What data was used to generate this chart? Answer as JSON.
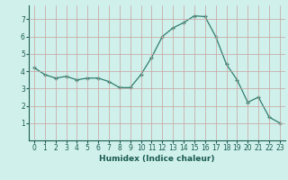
{
  "x": [
    0,
    1,
    2,
    3,
    4,
    5,
    6,
    7,
    8,
    9,
    10,
    11,
    12,
    13,
    14,
    15,
    16,
    17,
    18,
    19,
    20,
    21,
    22,
    23
  ],
  "y": [
    4.2,
    3.8,
    3.6,
    3.7,
    3.5,
    3.6,
    3.6,
    3.4,
    3.05,
    3.05,
    3.8,
    4.8,
    6.0,
    6.5,
    6.8,
    7.2,
    7.15,
    6.0,
    4.4,
    3.5,
    2.2,
    2.5,
    1.35,
    1.0
  ],
  "line_color": "#2e7d6e",
  "marker": "+",
  "marker_size": 3.5,
  "bg_color": "#d0f0eb",
  "grid_color_major": "#c8a0a0",
  "xlabel": "Humidex (Indice chaleur)",
  "xlabel_color": "#1a5c52",
  "tick_color": "#1a5c52",
  "xlabel_fontsize": 6.5,
  "tick_fontsize": 5.5,
  "xlim": [
    -0.5,
    23.5
  ],
  "ylim": [
    0.0,
    7.8
  ],
  "yticks": [
    1,
    2,
    3,
    4,
    5,
    6,
    7
  ],
  "xticks": [
    0,
    1,
    2,
    3,
    4,
    5,
    6,
    7,
    8,
    9,
    10,
    11,
    12,
    13,
    14,
    15,
    16,
    17,
    18,
    19,
    20,
    21,
    22,
    23
  ]
}
